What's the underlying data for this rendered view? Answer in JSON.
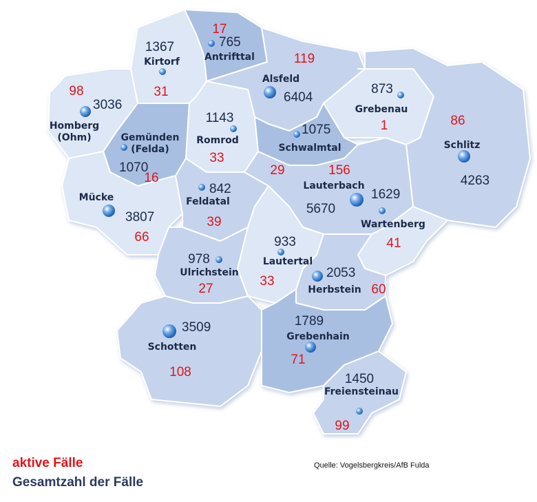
{
  "colors": {
    "active": "#e0141b",
    "total": "#1c2a48",
    "region_light": "#dde7f5",
    "region_mid": "#c5d4ec",
    "region_dark": "#a9bfe2"
  },
  "legend": {
    "active_label": "aktive Fälle",
    "total_label": "Gesamtzahl der Fälle"
  },
  "source": "Quelle: Vogelsbergkreis/AfB Fulda",
  "municipalities": [
    {
      "name": "Antrifttal",
      "total": "765",
      "active": "17"
    },
    {
      "name": "Kirtorf",
      "total": "1367",
      "active": "31"
    },
    {
      "name": "Alsfeld",
      "total": "6404",
      "active": "119"
    },
    {
      "name": "Grebenau",
      "total": "873",
      "active": "1"
    },
    {
      "name": "Homberg",
      "name2": "(Ohm)",
      "total": "3036",
      "active": "98"
    },
    {
      "name": "Gemünden",
      "name2": "(Felda)",
      "total": "1070",
      "active": "16"
    },
    {
      "name": "Romrod",
      "total": "1143",
      "active": "33"
    },
    {
      "name": "Schwalmtal",
      "total": "1075",
      "active": "29"
    },
    {
      "name": "Schlitz",
      "total": "4263",
      "active": "86"
    },
    {
      "name": "Lauterbach",
      "total": "5670",
      "active": "156"
    },
    {
      "name": "Wartenberg",
      "total": "1629",
      "active": "41"
    },
    {
      "name": "Mücke",
      "total": "3807",
      "active": "66"
    },
    {
      "name": "Feldatal",
      "total": "842",
      "active": "39"
    },
    {
      "name": "Lautertal",
      "total": "933",
      "active": "33"
    },
    {
      "name": "Ulrichstein",
      "total": "978",
      "active": "27"
    },
    {
      "name": "Herbstein",
      "total": "2053",
      "active": "60"
    },
    {
      "name": "Schotten",
      "total": "3509",
      "active": "108"
    },
    {
      "name": "Grebenhain",
      "total": "1789",
      "active": "71"
    },
    {
      "name": "Freiensteinau",
      "total": "1450",
      "active": "99"
    }
  ]
}
